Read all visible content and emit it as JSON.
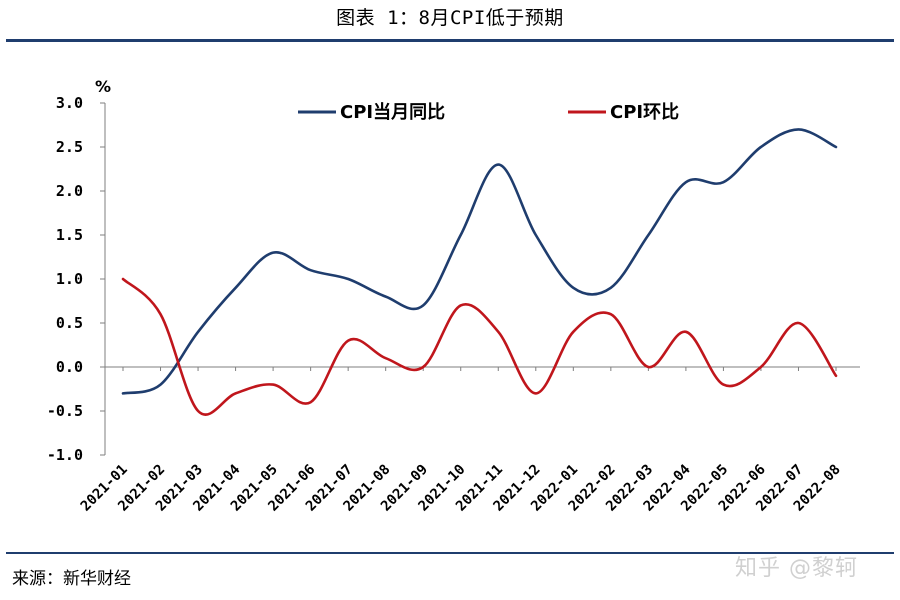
{
  "title": "图表 1：8月CPI低于预期",
  "source": "来源：新华财经",
  "watermark": "知乎 @黎轲",
  "colors": {
    "rule": "#1f3d6e",
    "yoy_line": "#1f3d6e",
    "mom_line": "#c0161c"
  },
  "chart_data": {
    "type": "line",
    "title": "图表 1：8月CPI低于预期",
    "ylabel": "%",
    "xlabel": "",
    "ylim": [
      -1.0,
      3.0
    ],
    "yticks": [
      "3.0",
      "2.5",
      "2.0",
      "1.5",
      "1.0",
      "0.5",
      "0.0",
      "-0.5",
      "-1.0"
    ],
    "categories": [
      "2021-01",
      "2021-02",
      "2021-03",
      "2021-04",
      "2021-05",
      "2021-06",
      "2021-07",
      "2021-08",
      "2021-09",
      "2021-10",
      "2021-11",
      "2021-12",
      "2022-01",
      "2022-02",
      "2022-03",
      "2022-04",
      "2022-05",
      "2022-06",
      "2022-07",
      "2022-08"
    ],
    "series": [
      {
        "name": "CPI当月同比",
        "color": "#1f3d6e",
        "values": [
          -0.3,
          -0.2,
          0.4,
          0.9,
          1.3,
          1.1,
          1.0,
          0.8,
          0.7,
          1.5,
          2.3,
          1.5,
          0.9,
          0.9,
          1.5,
          2.1,
          2.1,
          2.5,
          2.7,
          2.5
        ]
      },
      {
        "name": "CPI环比",
        "color": "#c0161c",
        "values": [
          1.0,
          0.6,
          -0.5,
          -0.3,
          -0.2,
          -0.4,
          0.3,
          0.1,
          0.0,
          0.7,
          0.4,
          -0.3,
          0.4,
          0.6,
          0.0,
          0.4,
          -0.2,
          0.0,
          0.5,
          -0.1
        ]
      }
    ],
    "legend": "top-inside",
    "grid": false
  }
}
